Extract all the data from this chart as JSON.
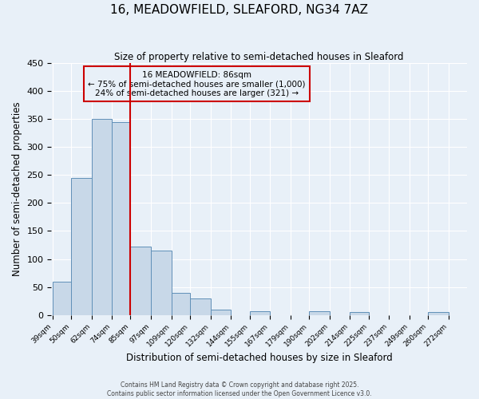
{
  "title": "16, MEADOWFIELD, SLEAFORD, NG34 7AZ",
  "subtitle": "Size of property relative to semi-detached houses in Sleaford",
  "xlabel": "Distribution of semi-detached houses by size in Sleaford",
  "ylabel": "Number of semi-detached properties",
  "bin_labels": [
    "39sqm",
    "50sqm",
    "62sqm",
    "74sqm",
    "85sqm",
    "97sqm",
    "109sqm",
    "120sqm",
    "132sqm",
    "144sqm",
    "155sqm",
    "167sqm",
    "179sqm",
    "190sqm",
    "202sqm",
    "214sqm",
    "225sqm",
    "237sqm",
    "249sqm",
    "260sqm",
    "272sqm"
  ],
  "bin_edges": [
    39,
    50,
    62,
    74,
    85,
    97,
    109,
    120,
    132,
    144,
    155,
    167,
    179,
    190,
    202,
    214,
    225,
    237,
    249,
    260,
    272
  ],
  "bar_heights": [
    60,
    245,
    350,
    345,
    122,
    115,
    40,
    29,
    9,
    0,
    6,
    0,
    0,
    7,
    0,
    5,
    0,
    0,
    0,
    5
  ],
  "bar_color": "#c8d8e8",
  "bar_edgecolor": "#6090b8",
  "vline_x": 85,
  "vline_color": "#cc0000",
  "annotation_title": "16 MEADOWFIELD: 86sqm",
  "annotation_line1": "← 75% of semi-detached houses are smaller (1,000)",
  "annotation_line2": "24% of semi-detached houses are larger (321) →",
  "annotation_box_edgecolor": "#cc0000",
  "ylim": [
    0,
    450
  ],
  "yticks": [
    0,
    50,
    100,
    150,
    200,
    250,
    300,
    350,
    400,
    450
  ],
  "background_color": "#e8f0f8",
  "grid_color": "#ffffff",
  "footer1": "Contains HM Land Registry data © Crown copyright and database right 2025.",
  "footer2": "Contains public sector information licensed under the Open Government Licence v3.0."
}
